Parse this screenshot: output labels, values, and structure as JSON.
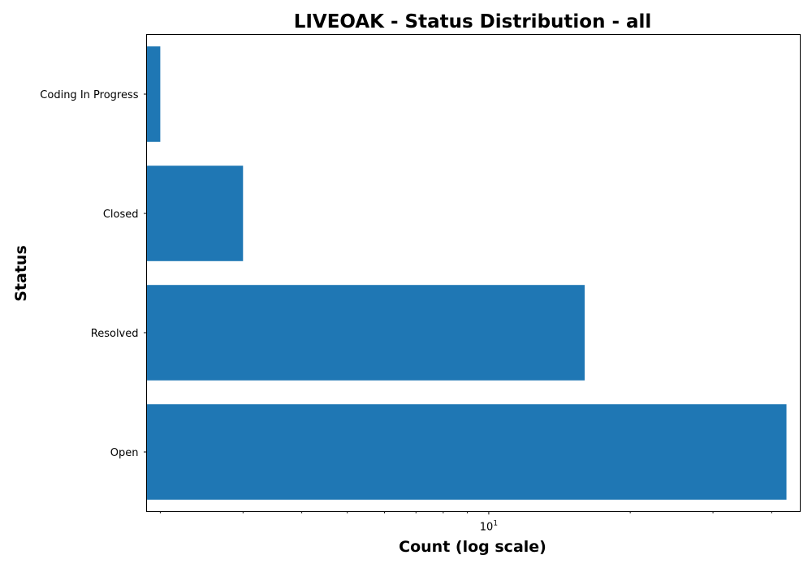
{
  "chart_data": {
    "type": "bar",
    "orientation": "horizontal",
    "title": "LIVEOAK - Status Distribution - all",
    "xlabel": "Count (log scale)",
    "ylabel": "Status",
    "x_scale": "log",
    "xlim": [
      1.87,
      46
    ],
    "x_major_ticks": [
      {
        "value": 10,
        "base": "10",
        "exp": "1"
      }
    ],
    "x_minor_ticks": [
      2,
      3,
      4,
      5,
      6,
      7,
      8,
      9,
      20,
      30,
      40
    ],
    "categories": [
      "Coding In Progress",
      "Closed",
      "Resolved",
      "Open"
    ],
    "values": [
      2,
      3,
      16,
      43
    ],
    "grid": false,
    "legend": "none",
    "bar_color": "#1f77b4"
  }
}
